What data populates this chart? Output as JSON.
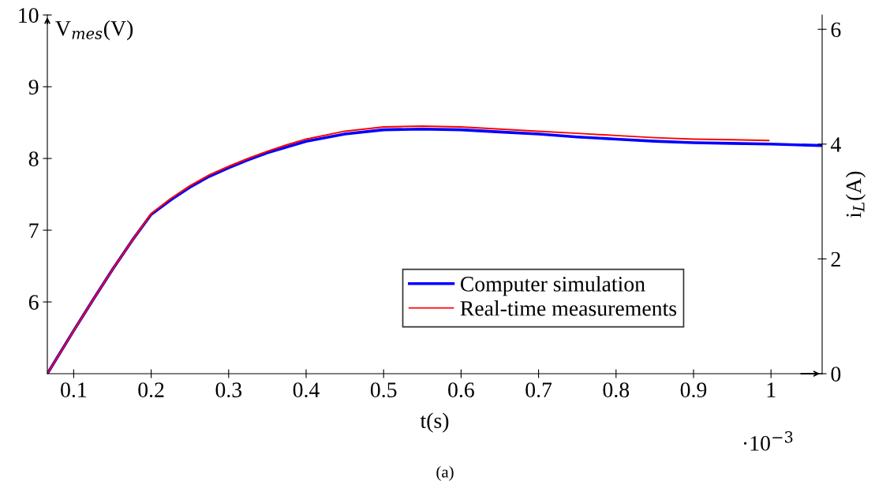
{
  "chart_data": {
    "type": "line",
    "xlabel": "t(s)",
    "ylabel": "V$_{mes}$(V)",
    "y2label": "i$_{L}$(A)",
    "annotations": [
      "·10$^{−3}$",
      "(a)"
    ],
    "xlim": [
      0.066,
      1.066
    ],
    "xticks": [
      0.1,
      0.2,
      0.3,
      0.4,
      0.5,
      0.6,
      0.7,
      0.8,
      0.9,
      1
    ],
    "ylim": [
      5,
      10
    ],
    "yticks": [
      6,
      7,
      8,
      9,
      10
    ],
    "y2lim": [
      0,
      6.25
    ],
    "y2ticks": [
      0,
      2,
      4,
      6
    ],
    "grid": false,
    "legend": "bottom",
    "marker": "none",
    "line_style": "solid",
    "series": [
      {
        "name": "Computer simulation",
        "color": "#0000ff",
        "x": [
          0.066,
          0.1,
          0.125,
          0.15,
          0.175,
          0.2,
          0.225,
          0.25,
          0.275,
          0.3,
          0.325,
          0.35,
          0.375,
          0.4,
          0.45,
          0.5,
          0.55,
          0.6,
          0.65,
          0.7,
          0.75,
          0.8,
          0.85,
          0.9,
          0.95,
          1.0,
          1.066
        ],
        "values": [
          5.0,
          5.6,
          6.03,
          6.45,
          6.85,
          7.22,
          7.42,
          7.6,
          7.75,
          7.87,
          7.98,
          8.08,
          8.16,
          8.24,
          8.34,
          8.4,
          8.41,
          8.4,
          8.37,
          8.34,
          8.3,
          8.27,
          8.24,
          8.22,
          8.21,
          8.2,
          8.18
        ]
      },
      {
        "name": "Real-time measurements",
        "color": "#ff0000",
        "x": [
          0.066,
          0.1,
          0.125,
          0.15,
          0.175,
          0.2,
          0.225,
          0.25,
          0.275,
          0.3,
          0.325,
          0.35,
          0.375,
          0.4,
          0.45,
          0.5,
          0.55,
          0.6,
          0.65,
          0.7,
          0.75,
          0.8,
          0.85,
          0.9,
          0.95,
          0.997
        ],
        "values": [
          5.0,
          5.6,
          6.03,
          6.45,
          6.85,
          7.23,
          7.44,
          7.62,
          7.77,
          7.89,
          8.0,
          8.1,
          8.19,
          8.27,
          8.38,
          8.44,
          8.45,
          8.44,
          8.41,
          8.38,
          8.35,
          8.32,
          8.29,
          8.27,
          8.26,
          8.25
        ]
      }
    ]
  }
}
